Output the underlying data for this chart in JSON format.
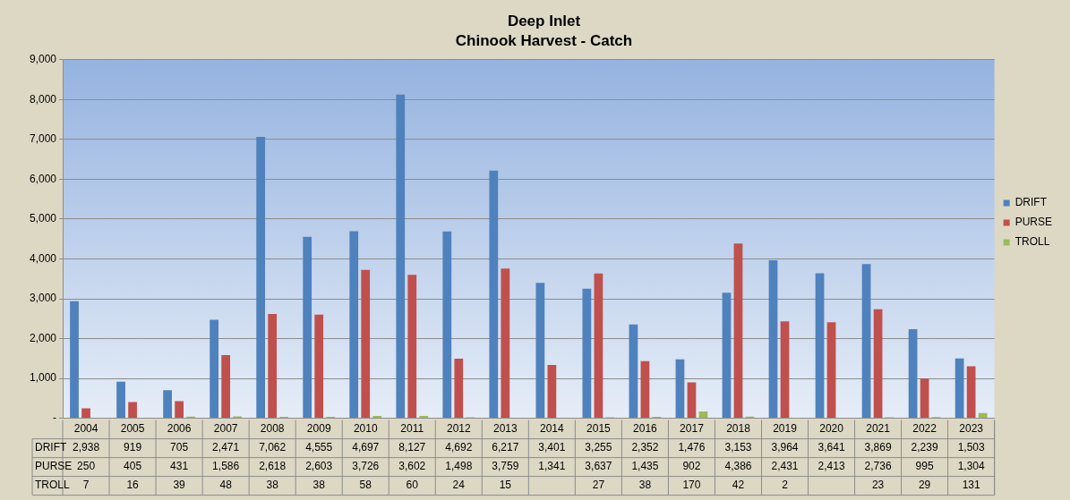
{
  "chart_data": {
    "type": "bar",
    "title": "Deep Inlet",
    "subtitle": "Chinook Harvest - Catch",
    "categories": [
      "2004",
      "2005",
      "2006",
      "2007",
      "2008",
      "2009",
      "2010",
      "2011",
      "2012",
      "2013",
      "2014",
      "2015",
      "2016",
      "2017",
      "2018",
      "2019",
      "2020",
      "2021",
      "2022",
      "2023"
    ],
    "series": [
      {
        "name": "DRIFT",
        "color": "#4f81bd",
        "values": [
          2938,
          919,
          705,
          2471,
          7062,
          4555,
          4697,
          8127,
          4692,
          6217,
          3401,
          3255,
          2352,
          1476,
          3153,
          3964,
          3641,
          3869,
          2239,
          1503
        ],
        "value_labels": [
          "2,938",
          "919",
          "705",
          "2,471",
          "7,062",
          "4,555",
          "4,697",
          "8,127",
          "4,692",
          "6,217",
          "3,401",
          "3,255",
          "2,352",
          "1,476",
          "3,153",
          "3,964",
          "3,641",
          "3,869",
          "2,239",
          "1,503"
        ]
      },
      {
        "name": "PURSE",
        "color": "#c0504d",
        "values": [
          250,
          405,
          431,
          1586,
          2618,
          2603,
          3726,
          3602,
          1498,
          3759,
          1341,
          3637,
          1435,
          902,
          4386,
          2431,
          2413,
          2736,
          995,
          1304
        ],
        "value_labels": [
          "250",
          "405",
          "431",
          "1,586",
          "2,618",
          "2,603",
          "3,726",
          "3,602",
          "1,498",
          "3,759",
          "1,341",
          "3,637",
          "1,435",
          "902",
          "4,386",
          "2,431",
          "2,413",
          "2,736",
          "995",
          "1,304"
        ]
      },
      {
        "name": "TROLL",
        "color": "#9bbb59",
        "values": [
          7,
          16,
          39,
          48,
          38,
          38,
          58,
          60,
          24,
          15,
          null,
          27,
          38,
          170,
          42,
          2,
          null,
          23,
          29,
          131
        ],
        "value_labels": [
          "7",
          "16",
          "39",
          "48",
          "38",
          "38",
          "58",
          "60",
          "24",
          "15",
          null,
          "27",
          "38",
          "170",
          "42",
          "2",
          null,
          "23",
          "29",
          "131"
        ]
      }
    ],
    "ylim": [
      0,
      9000
    ],
    "yticks": [
      {
        "value": 0,
        "label": "-"
      },
      {
        "value": 1000,
        "label": "1,000"
      },
      {
        "value": 2000,
        "label": "2,000"
      },
      {
        "value": 3000,
        "label": "3,000"
      },
      {
        "value": 4000,
        "label": "4,000"
      },
      {
        "value": 5000,
        "label": "5,000"
      },
      {
        "value": 6000,
        "label": "6,000"
      },
      {
        "value": 7000,
        "label": "7,000"
      },
      {
        "value": 8000,
        "label": "8,000"
      },
      {
        "value": 9000,
        "label": "9,000"
      }
    ],
    "grid": "y",
    "legend": "right"
  }
}
